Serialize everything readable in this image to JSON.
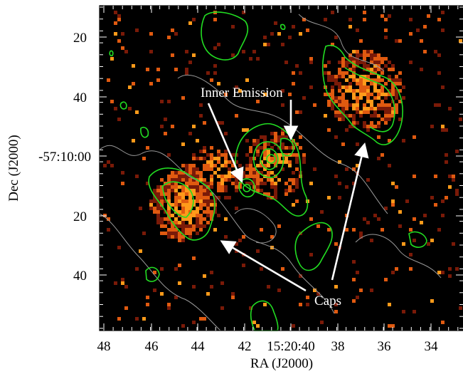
{
  "figure": {
    "xlabel": "RA (J2000)",
    "ylabel": "Dec (J2000)",
    "x_ticks": [
      "48",
      "46",
      "44",
      "42",
      "15:20:40",
      "38",
      "36",
      "34"
    ],
    "y_ticks": [
      "20",
      "40",
      "-57:10:00",
      "20",
      "40"
    ],
    "annotations": {
      "inner": "Inner Emission",
      "caps": "Caps"
    },
    "colors": {
      "background": "#000000",
      "emission_hot": "#ff9a1a",
      "emission_warm": "#e05a10",
      "emission_faint": "#7a1a08",
      "contour_green": "#22dd22",
      "contour_gray": "#9a9a9a",
      "arrow": "#ffffff"
    }
  }
}
